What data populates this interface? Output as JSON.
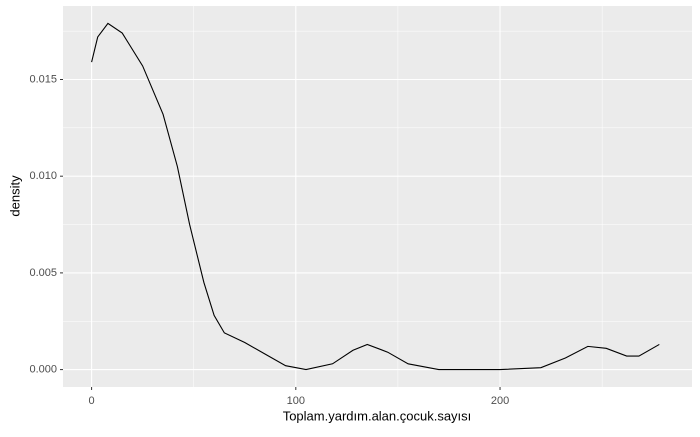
{
  "chart_data": {
    "type": "density",
    "x_label": "Toplam.yardım.alan.çocuk.sayısı",
    "y_label": "density",
    "x": [
      0,
      3,
      8,
      15,
      25,
      35,
      42,
      48,
      55,
      60,
      65,
      75,
      85,
      95,
      105,
      118,
      128,
      135,
      145,
      155,
      170,
      200,
      220,
      232,
      243,
      252,
      262,
      268,
      278
    ],
    "values": [
      0.0159,
      0.0172,
      0.0179,
      0.0174,
      0.0157,
      0.0132,
      0.0105,
      0.0075,
      0.0045,
      0.0028,
      0.0019,
      0.0014,
      0.0008,
      0.0002,
      0.0,
      0.0003,
      0.001,
      0.0013,
      0.0009,
      0.0003,
      0.0,
      0.0,
      0.0001,
      0.0006,
      0.0012,
      0.0011,
      0.0007,
      0.0007,
      0.0013
    ],
    "color": "#000000",
    "xlim": [
      -14,
      294
    ],
    "ylim": [
      -0.0009,
      0.0188
    ],
    "xticks": [
      0,
      100,
      200
    ],
    "yticks": [
      {
        "value": 0,
        "label": "0.000"
      },
      {
        "value": 0.005,
        "label": "0.005"
      },
      {
        "value": 0.01,
        "label": "0.010"
      },
      {
        "value": 0.015,
        "label": "0.015"
      }
    ],
    "x_minor_grid": [
      50,
      150,
      250
    ],
    "y_minor_grid": [
      0.0025,
      0.0075,
      0.0125,
      0.0175
    ],
    "grid": true,
    "panel_color": "#ebebeb"
  }
}
